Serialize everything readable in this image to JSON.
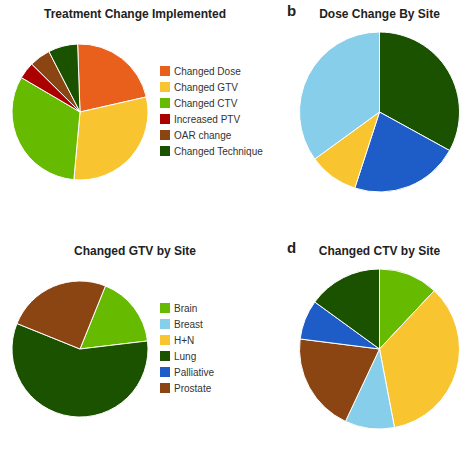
{
  "chart_data": [
    {
      "type": "pie",
      "title": "Treatment Change Implemented",
      "categories": [
        "Changed Dose",
        "Changed GTV",
        "Changed CTV",
        "Increased PTV",
        "OAR change",
        "Changed Technique"
      ],
      "values": [
        22,
        30,
        32,
        4,
        5,
        7
      ],
      "colors": [
        "#E8601C",
        "#F8C530",
        "#66BB00",
        "#AA0000",
        "#8B4513",
        "#1A5200"
      ],
      "legend": "right"
    },
    {
      "type": "pie",
      "title": "Dose Change By Site",
      "annotation": "b",
      "values": [
        33,
        22,
        10,
        35
      ],
      "colors": [
        "#1A5200",
        "#1E5DC8",
        "#F8C530",
        "#87CEEB"
      ]
    },
    {
      "type": "pie",
      "title": "Changed GTV by Site",
      "values": [
        17,
        58,
        25
      ],
      "colors": [
        "#66BB00",
        "#1A5200",
        "#8B4513"
      ],
      "legend": "right",
      "legend_entries": [
        {
          "name": "Brain",
          "color": "#66BB00"
        },
        {
          "name": "Breast",
          "color": "#87CEEB"
        },
        {
          "name": "H+N",
          "color": "#F8C530"
        },
        {
          "name": "Lung",
          "color": "#1A5200"
        },
        {
          "name": "Palliative",
          "color": "#1E5DC8"
        },
        {
          "name": "Prostate",
          "color": "#8B4513"
        }
      ]
    },
    {
      "type": "pie",
      "title": "Changed CTV by Site",
      "annotation": "d",
      "values": [
        12,
        35,
        10,
        20,
        8,
        15
      ],
      "colors": [
        "#66BB00",
        "#F8C530",
        "#87CEEB",
        "#8B4513",
        "#1E5DC8",
        "#1A5200"
      ]
    }
  ]
}
